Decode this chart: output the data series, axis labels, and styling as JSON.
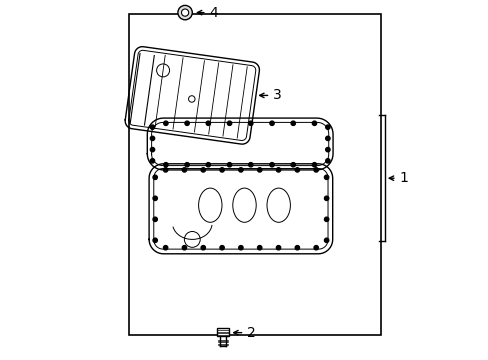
{
  "bg_color": "#ffffff",
  "line_color": "#000000",
  "border": [
    0.18,
    0.07,
    0.7,
    0.89
  ]
}
